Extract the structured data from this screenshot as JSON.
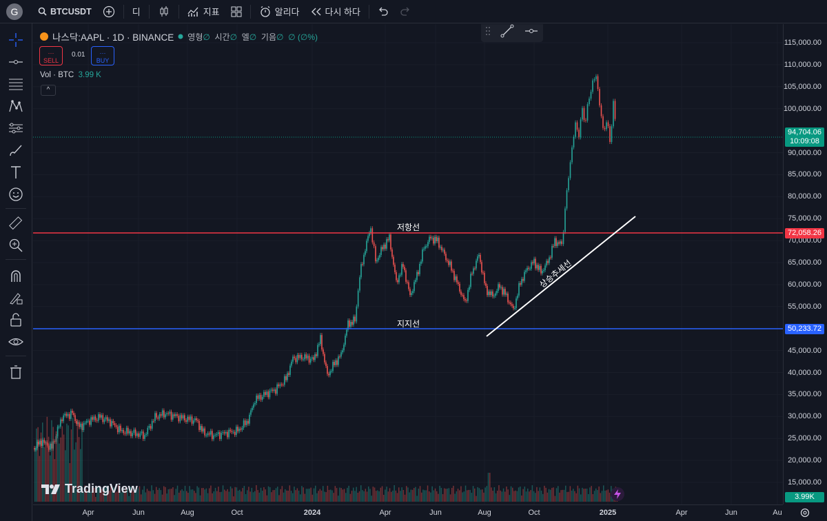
{
  "toolbar": {
    "avatar_letter": "G",
    "symbol": "BTCUSDT",
    "interval": "디",
    "indicators_label": "지표",
    "alert_label": "알리다",
    "replay_label": "다시 하다"
  },
  "legend": {
    "title": "나스닥:AAPL · 1D · BINANCE",
    "ohlc": [
      {
        "key": "영형",
        "value": "∅"
      },
      {
        "key": "시간",
        "value": "∅"
      },
      {
        "key": "엘",
        "value": "∅"
      },
      {
        "key": "기음",
        "value": "∅"
      },
      {
        "key": "",
        "value": "∅ (∅%)"
      }
    ],
    "sell_dots": "···",
    "sell_label": "SELL",
    "spread": "0.01",
    "buy_dots": "···",
    "buy_label": "BUY",
    "vol_label": "Vol · BTC",
    "vol_value": "3.99 K",
    "collapse": "^"
  },
  "annotations": {
    "resistance_label": "저항선",
    "support_label": "지지선",
    "trendline_label": "상승추세선"
  },
  "logo_text": "TradingView",
  "price_axis": {
    "ticks": [
      "115,000.00",
      "110,000.00",
      "105,000.00",
      "100,000.00",
      "90,000.00",
      "85,000.00",
      "80,000.00",
      "75,000.00",
      "70,000.00",
      "65,000.00",
      "60,000.00",
      "55,000.00",
      "45,000.00",
      "40,000.00",
      "35,000.00",
      "30,000.00",
      "25,000.00",
      "20,000.00",
      "15,000.00"
    ],
    "current_price": "94,704.06",
    "countdown": "10:09:08",
    "resistance_price": "72,058.26",
    "support_price": "50,233.72",
    "volume_value": "3.99K"
  },
  "time_axis": {
    "ticks": [
      {
        "label": "Apr",
        "bold": false
      },
      {
        "label": "Jun",
        "bold": false
      },
      {
        "label": "Aug",
        "bold": false
      },
      {
        "label": "Oct",
        "bold": false
      },
      {
        "label": "2024",
        "bold": true
      },
      {
        "label": "Apr",
        "bold": false
      },
      {
        "label": "Jun",
        "bold": false
      },
      {
        "label": "Aug",
        "bold": false
      },
      {
        "label": "Oct",
        "bold": false
      },
      {
        "label": "2025",
        "bold": true
      },
      {
        "label": "Apr",
        "bold": false
      },
      {
        "label": "Jun",
        "bold": false
      },
      {
        "label": "Au",
        "bold": false
      }
    ]
  },
  "colors": {
    "background": "#131722",
    "up": "#26a69a",
    "down": "#ef5350",
    "resistance": "#f23645",
    "support": "#2962ff",
    "current_price": "#089981"
  },
  "icons": [
    "search-icon",
    "add-symbol-icon",
    "candles-icon",
    "indicators-icon",
    "layouts-icon",
    "alert-icon",
    "replay-icon",
    "undo-icon",
    "redo-icon",
    "crosshair-icon",
    "trendline-tool-icon",
    "fib-icon",
    "pattern-icon",
    "prediction-icon",
    "brush-icon",
    "text-icon",
    "emoji-icon",
    "ruler-icon",
    "zoom-icon",
    "magnet-icon",
    "lock-drawing-icon",
    "lock-icon",
    "eye-icon",
    "trash-icon",
    "settings-gear-icon"
  ]
}
